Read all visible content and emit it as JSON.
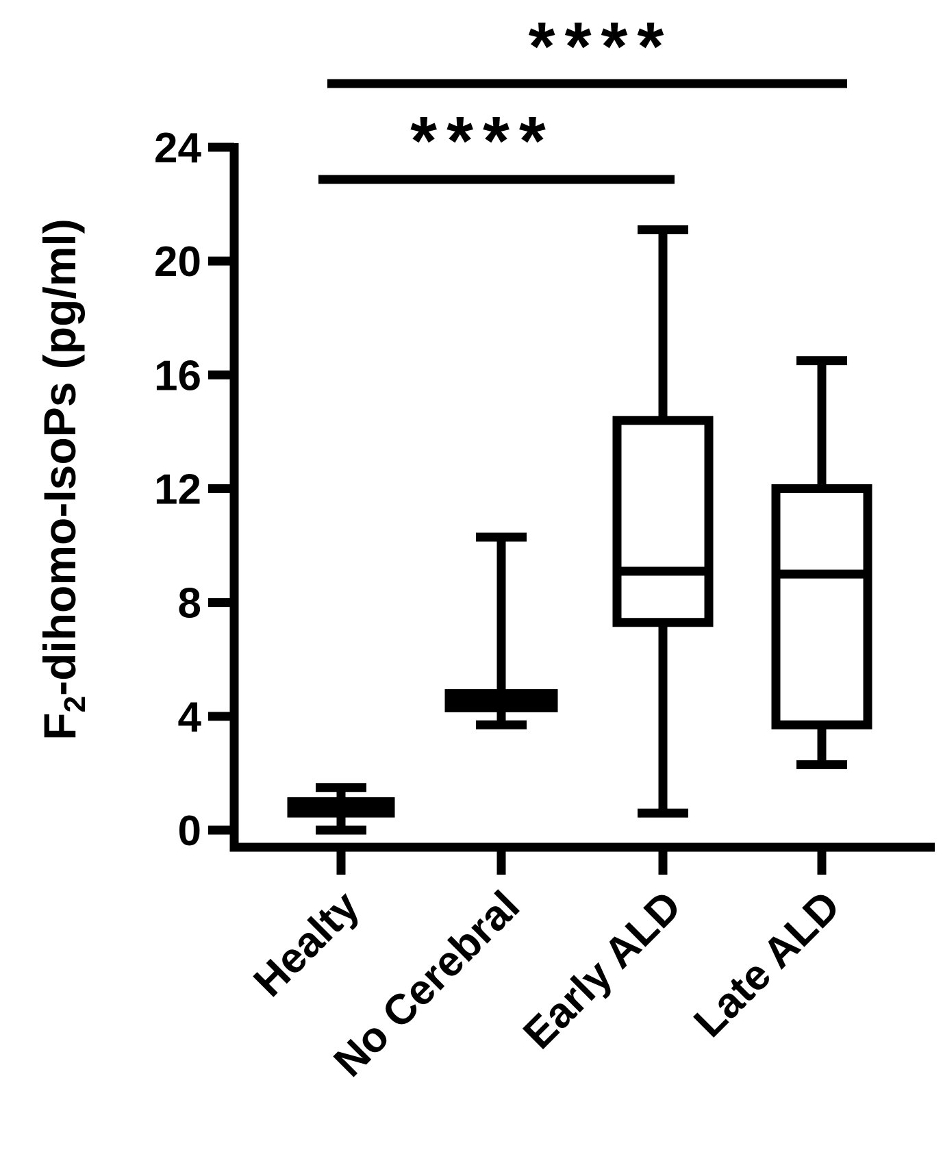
{
  "chart_data": {
    "type": "box",
    "categories": [
      "Healty",
      "No Cerebral",
      "Early ALD",
      "Late ALD"
    ],
    "boxes": [
      {
        "category": "Healty",
        "min": 0.0,
        "q1": 0.6,
        "median": 0.8,
        "q3": 1.0,
        "max": 1.5
      },
      {
        "category": "No Cerebral",
        "min": 3.7,
        "q1": 4.3,
        "median": 4.6,
        "q3": 4.8,
        "max": 10.3
      },
      {
        "category": "Early ALD",
        "min": 0.6,
        "q1": 7.3,
        "median": 9.1,
        "q3": 14.4,
        "max": 21.1
      },
      {
        "category": "Late ALD",
        "min": 2.3,
        "q1": 3.7,
        "median": 9.0,
        "q3": 12.0,
        "max": 16.5
      }
    ],
    "ylabel_main": "F",
    "ylabel_sub": "2",
    "ylabel_rest": "-dihomo-IsoPs (pg/ml)",
    "ylim": [
      0,
      24
    ],
    "yticks": [
      "0",
      "4",
      "8",
      "12",
      "16",
      "20",
      "24"
    ],
    "grid": false,
    "significance": [
      {
        "from": "Healty",
        "to": "Early ALD",
        "label": "****"
      },
      {
        "from": "Healty",
        "to": "Late ALD",
        "label": "****"
      }
    ]
  }
}
